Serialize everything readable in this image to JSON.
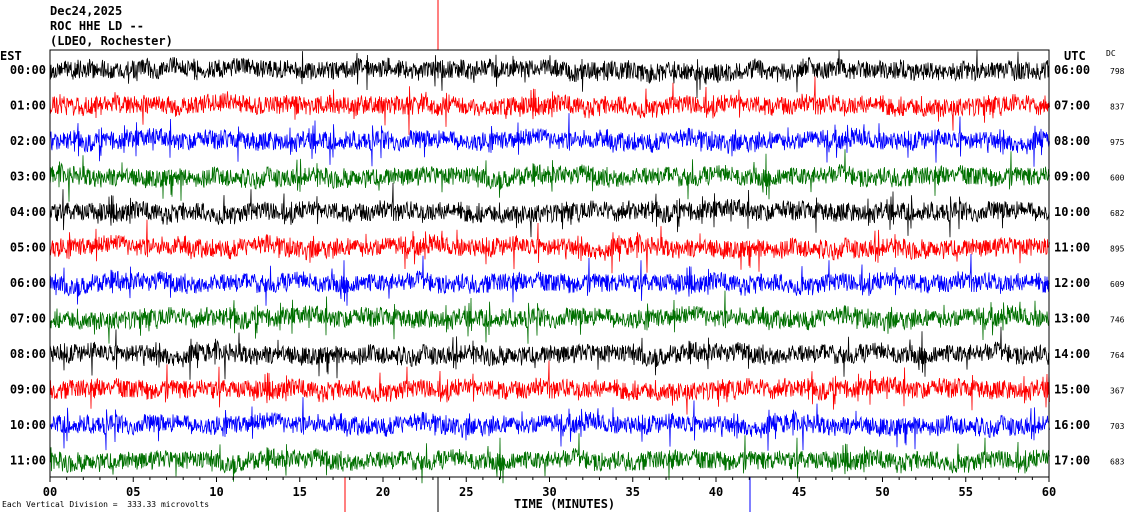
{
  "header": {
    "date": "Dec24,2025",
    "station": "ROC HHE LD --",
    "network": "(LDEO, Rochester)"
  },
  "left_zone_label": "EST",
  "right_zone_label": "UTC",
  "dc_label": "DC",
  "footnote": "Each Vertical Division =  333.33 microvolts",
  "colors": {
    "trace_cycle": [
      "#000000",
      "#ff0000",
      "#0000ff",
      "#007000"
    ],
    "marker": "#ff0000",
    "frame": "#000000"
  },
  "chart_data": {
    "type": "line",
    "title": "",
    "xlabel": "TIME (MINUTES)",
    "ylabel": "",
    "xlim": [
      0,
      60
    ],
    "x_ticks": [
      "00",
      "05",
      "10",
      "15",
      "20",
      "25",
      "30",
      "35",
      "40",
      "45",
      "50",
      "55",
      "60"
    ],
    "rows": [
      {
        "est": "00:00",
        "utc": "06:00",
        "dc": "798"
      },
      {
        "est": "01:00",
        "utc": "07:00",
        "dc": "837"
      },
      {
        "est": "02:00",
        "utc": "08:00",
        "dc": "975"
      },
      {
        "est": "03:00",
        "utc": "09:00",
        "dc": "600"
      },
      {
        "est": "04:00",
        "utc": "10:00",
        "dc": "682"
      },
      {
        "est": "05:00",
        "utc": "11:00",
        "dc": "895"
      },
      {
        "est": "06:00",
        "utc": "12:00",
        "dc": "609"
      },
      {
        "est": "07:00",
        "utc": "13:00",
        "dc": "746"
      },
      {
        "est": "08:00",
        "utc": "14:00",
        "dc": "764"
      },
      {
        "est": "09:00",
        "utc": "15:00",
        "dc": "367"
      },
      {
        "est": "10:00",
        "utc": "16:00",
        "dc": "703"
      },
      {
        "est": "11:00",
        "utc": "17:00",
        "dc": "683"
      }
    ],
    "grid": false
  }
}
